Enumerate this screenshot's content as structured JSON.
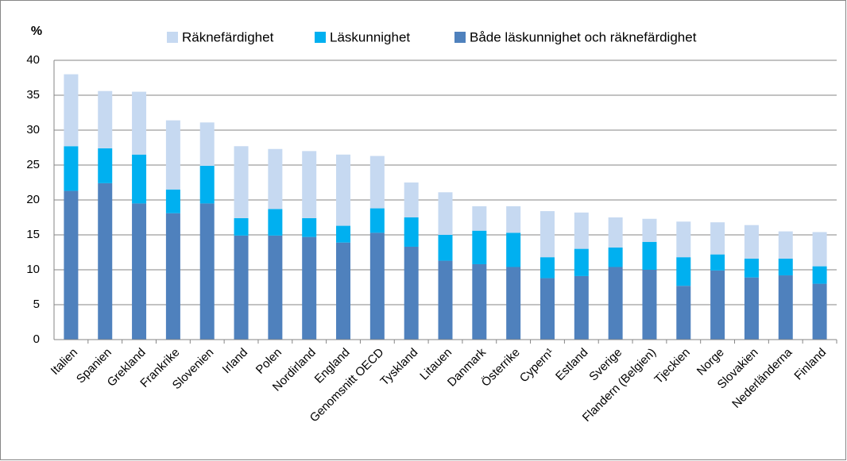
{
  "chart_data": {
    "type": "bar",
    "stacked": true,
    "ylabel": "%",
    "categories": [
      "Italien",
      "Spanien",
      "Grekland",
      "Frankrike",
      "Slovenien",
      "Irland",
      "Polen",
      "Nordirland",
      "England",
      "Genomsnitt OECD",
      "Tyskland",
      "Litauen",
      "Danmark",
      "Österrike",
      "Cypern¹",
      "Estland",
      "Sverige",
      "Flandern (Belgien)",
      "Tjeckien",
      "Norge",
      "Slovakien",
      "Nederländerna",
      "Finland"
    ],
    "series": [
      {
        "name": "Räknefärdighet",
        "color": "#c6d9f1",
        "values": [
          10.3,
          8.2,
          9.0,
          9.9,
          6.2,
          10.3,
          8.6,
          9.6,
          10.2,
          7.5,
          5.0,
          6.1,
          3.5,
          3.8,
          6.6,
          5.2,
          4.3,
          3.3,
          5.1,
          4.6,
          4.8,
          3.9,
          4.9
        ]
      },
      {
        "name": "Läskunnighet",
        "color": "#00b0f0",
        "values": [
          6.4,
          5.0,
          7.0,
          3.4,
          5.4,
          2.5,
          3.8,
          2.7,
          2.4,
          3.5,
          4.2,
          3.7,
          4.8,
          4.9,
          3.0,
          3.9,
          2.8,
          4.0,
          4.1,
          2.3,
          2.7,
          2.4,
          2.5
        ]
      },
      {
        "name": "Både läskunnighet och räknefärdighet",
        "color": "#4f81bd",
        "values": [
          21.3,
          22.4,
          19.5,
          18.1,
          19.5,
          14.9,
          14.9,
          14.7,
          13.9,
          15.3,
          13.3,
          11.3,
          10.8,
          10.4,
          8.8,
          9.1,
          10.4,
          10.0,
          7.7,
          9.9,
          8.9,
          9.2,
          8.0
        ]
      }
    ],
    "ylim": [
      0,
      40
    ],
    "yticks": [
      0,
      5,
      10,
      15,
      20,
      25,
      30,
      35,
      40
    ],
    "grid": true,
    "legend": "top"
  }
}
